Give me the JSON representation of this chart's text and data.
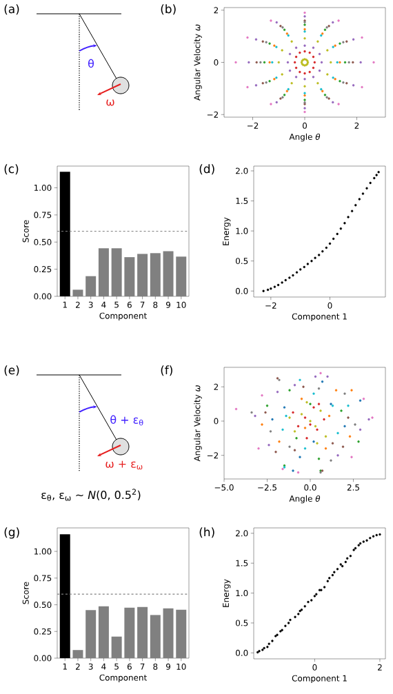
{
  "chart_data": [
    {
      "type": "other",
      "title": "(a)",
      "annotations": [
        "θ",
        "ω"
      ]
    },
    {
      "type": "scatter",
      "title": "(b)",
      "xlabel": "Angle *θ*",
      "ylabel": "Angular Velocity *ω*",
      "marker": "circle",
      "xlim": [
        -3.1,
        3.1
      ],
      "ylim": [
        -2.1,
        2.1
      ],
      "xticks": [
        {
          "value": -2,
          "label": "−2"
        },
        0,
        2
      ],
      "yticks": [
        {
          "value": -2,
          "label": "−2"
        },
        0,
        2
      ],
      "series": [
        {
          "color": "#e377c2",
          "x": [
            2.65,
            2.2,
            1.3,
            0,
            -1.3,
            -2.2,
            -2.65,
            -2.2,
            -1.3,
            0,
            1.3,
            2.2
          ],
          "values": [
            0,
            0.95,
            1.6,
            1.9,
            1.6,
            0.95,
            0,
            -0.95,
            -1.6,
            -1.9,
            -1.6,
            -0.95
          ]
        },
        {
          "color": "#9467bd",
          "x": [
            2.15,
            1.87,
            1.08,
            0,
            -1.08,
            -1.87,
            -2.15,
            -1.87,
            -1.08,
            0,
            1.08,
            1.87
          ],
          "values": [
            0,
            0.88,
            1.53,
            1.76,
            1.53,
            0.88,
            0,
            -0.88,
            -1.53,
            -1.76,
            -1.53,
            -0.88
          ]
        },
        {
          "color": "#8c564b",
          "x": [
            1.85,
            1.61,
            0.93,
            0,
            -0.93,
            -1.61,
            -1.85,
            -1.61,
            -0.93,
            0,
            0.93,
            1.61
          ],
          "values": [
            0,
            0.8,
            1.39,
            1.6,
            1.39,
            0.8,
            0,
            -0.8,
            -1.39,
            -1.6,
            -1.39,
            -0.8
          ]
        },
        {
          "color": "#7f7f7f",
          "x": [
            1.7,
            1.48,
            0.85,
            0,
            -0.85,
            -1.48,
            -1.7,
            -1.48,
            -0.85,
            0,
            0.85,
            1.48
          ],
          "values": [
            0,
            0.77,
            1.34,
            1.54,
            1.34,
            0.77,
            0,
            -0.77,
            -1.34,
            -1.54,
            -1.34,
            -0.77
          ]
        },
        {
          "color": "#2ca02c",
          "x": [
            1.55,
            1.35,
            0.78,
            0,
            -0.78,
            -1.35,
            -1.55,
            -1.35,
            -0.78,
            0,
            0.78,
            1.35
          ],
          "values": [
            0,
            0.72,
            1.25,
            1.44,
            1.25,
            0.72,
            0,
            -0.72,
            -1.25,
            -1.44,
            -1.25,
            -0.72
          ]
        },
        {
          "color": "#ff7f0e",
          "x": [
            1.35,
            1.17,
            0.68,
            0,
            -0.68,
            -1.17,
            -1.35,
            -1.17,
            -0.68,
            0,
            0.68,
            1.17
          ],
          "values": [
            0,
            0.64,
            1.1,
            1.27,
            1.1,
            0.64,
            0,
            -0.64,
            -1.1,
            -1.27,
            -1.1,
            -0.64
          ]
        },
        {
          "color": "#17becf",
          "x": [
            1.25,
            1.09,
            0.63,
            0,
            -0.63,
            -1.09,
            -1.25,
            -1.09,
            -0.63,
            0,
            0.63,
            1.09
          ],
          "values": [
            0,
            0.59,
            1.03,
            1.18,
            1.03,
            0.59,
            0,
            -0.59,
            -1.03,
            -1.18,
            -1.03,
            -0.59
          ]
        },
        {
          "color": "#bcbd22",
          "x": [
            1,
            0.87,
            0.5,
            0,
            -0.5,
            -0.87,
            -1,
            -0.87,
            -0.5,
            0,
            0.5,
            0.87
          ],
          "values": [
            0,
            0.46,
            0.8,
            0.92,
            0.8,
            0.46,
            0,
            -0.46,
            -0.8,
            -0.92,
            -0.8,
            -0.46
          ]
        },
        {
          "color": "#9467bd",
          "x": [
            0.65,
            0.57,
            0.33,
            0,
            -0.33,
            -0.57,
            -0.65,
            -0.57,
            -0.33,
            0,
            0.33,
            0.57
          ],
          "values": [
            0,
            0.32,
            0.56,
            0.64,
            0.56,
            0.32,
            0,
            -0.32,
            -0.56,
            -0.64,
            -0.56,
            -0.32
          ]
        },
        {
          "color": "#d62728",
          "x": [
            0.38,
            0.33,
            0.19,
            0,
            -0.19,
            -0.33,
            -0.38,
            -0.33,
            -0.19,
            0,
            0.19,
            0.33
          ],
          "values": [
            0,
            0.21,
            0.37,
            0.42,
            0.37,
            0.21,
            0,
            -0.21,
            -0.37,
            -0.42,
            -0.37,
            -0.21
          ]
        },
        {
          "color": "#bcbd22",
          "x": [
            0.12,
            0.1,
            0.06,
            0,
            -0.06,
            -0.1,
            -0.12,
            -0.1,
            -0.06,
            0,
            0.06,
            0.1
          ],
          "values": [
            0,
            0.06,
            0.1,
            0.12,
            0.1,
            0.06,
            0,
            -0.06,
            -0.1,
            -0.12,
            -0.1,
            -0.06
          ]
        }
      ]
    },
    {
      "type": "bar",
      "title": "(c)",
      "xlabel": "Component",
      "ylabel": "Score",
      "categories": [
        "1",
        "2",
        "3",
        "4",
        "5",
        "6",
        "7",
        "8",
        "9",
        "10"
      ],
      "values": [
        1.148,
        0.061,
        0.186,
        0.443,
        0.443,
        0.361,
        0.391,
        0.398,
        0.416,
        0.366
      ],
      "colors": [
        "#000000",
        "#808080",
        "#808080",
        "#808080",
        "#808080",
        "#808080",
        "#808080",
        "#808080",
        "#808080",
        "#808080"
      ],
      "ylim": [
        0,
        1.2
      ],
      "yticks": [
        {
          "value": 0,
          "label": "0.00"
        },
        {
          "value": 0.25,
          "label": "0.25"
        },
        {
          "value": 0.5,
          "label": "0.50"
        },
        {
          "value": 0.75,
          "label": "0.75"
        },
        {
          "value": 1,
          "label": "1.00"
        }
      ],
      "ref_lines": [
        {
          "axis": "y",
          "value": 0.6,
          "color": "#808080",
          "line_style": "dashed"
        }
      ]
    },
    {
      "type": "scatter",
      "title": "(d)",
      "xlabel": "Component 1",
      "ylabel": "Energy",
      "marker": "circle",
      "color": "#000000",
      "xlim": [
        -2.58,
        1.88
      ],
      "ylim": [
        -0.1,
        2.08
      ],
      "xticks": [
        {
          "value": -2,
          "label": "−2"
        },
        0
      ],
      "yticks": [
        {
          "value": 0,
          "label": "0.0"
        },
        {
          "value": 0.5,
          "label": "0.5"
        },
        {
          "value": 1,
          "label": "1.0"
        },
        {
          "value": 1.5,
          "label": "1.5"
        },
        {
          "value": 2,
          "label": "2.0"
        }
      ],
      "x": [
        -2.25,
        -2.1,
        -2,
        -1.87,
        -1.75,
        -1.62,
        -1.5,
        -1.37,
        -1.25,
        -1.12,
        -1,
        -0.87,
        -0.75,
        -0.62,
        -0.5,
        -0.37,
        -0.25,
        -0.12,
        0,
        0.12,
        0.25,
        0.37,
        0.5,
        0.62,
        0.75,
        0.87,
        1,
        1.12,
        1.25,
        1.37,
        1.5,
        1.58,
        1.65
      ],
      "values": [
        0,
        0.02,
        0.04,
        0.07,
        0.1,
        0.14,
        0.18,
        0.22,
        0.26,
        0.31,
        0.36,
        0.4,
        0.45,
        0.5,
        0.55,
        0.6,
        0.66,
        0.72,
        0.79,
        0.87,
        0.95,
        1.04,
        1.13,
        1.23,
        1.33,
        1.43,
        1.53,
        1.62,
        1.71,
        1.8,
        1.88,
        1.93,
        1.98
      ]
    },
    {
      "type": "other",
      "title": "(e)",
      "annotations": [
        "θ + ε$_{θ}$",
        "ω + ε$_{ω}$",
        "ε$_{θ}$, ε$_{ω}$ ~ *N*(0, 0.5$^{2}$)"
      ]
    },
    {
      "type": "scatter",
      "title": "(f)",
      "xlabel": "Angle *θ*",
      "ylabel": "Angular Velocity *ω*",
      "marker": "circle",
      "xlim": [
        -5,
        4.36
      ],
      "ylim": [
        -3.38,
        3.14
      ],
      "xticks": [
        {
          "value": -5,
          "label": "−5.0"
        },
        {
          "value": -2.5,
          "label": "−2.5"
        },
        {
          "value": 0,
          "label": "0.0"
        },
        {
          "value": 2.5,
          "label": "2.5"
        }
      ],
      "yticks": [
        {
          "value": -2,
          "label": "−2"
        },
        0,
        2
      ],
      "series": [
        {
          "color": "#1f77b4",
          "x": [
            -1.5,
            0.2,
            1.2,
            -0.6,
            2.0,
            -2.2,
            0.7,
            -1.0,
            2.9
          ],
          "values": [
            0.8,
            -1.2,
            1.0,
            -2.1,
            -0.3,
            0.1,
            2.3,
            -2.9,
            1.2
          ]
        },
        {
          "color": "#ff7f0e",
          "x": [
            -2.8,
            1.5,
            -0.5,
            0.9,
            2.3,
            -1.8,
            2.4,
            -0.3,
            1.1
          ],
          "values": [
            -0.2,
            1.8,
            1.3,
            -1.6,
            -0.9,
            -1.2,
            1.8,
            -0.4,
            0.3
          ]
        },
        {
          "color": "#2ca02c",
          "x": [
            -2.5,
            0.5,
            -1.2,
            1.8,
            -0.8,
            0.0,
            2.8,
            -1.5,
            0.6
          ],
          "values": [
            0.9,
            -2.2,
            1.8,
            0.6,
            -1.0,
            1.0,
            -1.2,
            -2.6,
            -2.9
          ]
        },
        {
          "color": "#9467bd",
          "x": [
            -3.2,
            -1.9,
            0.3,
            2.9,
            1.6,
            -0.9,
            -2.4,
            1.0,
            3.4
          ],
          "values": [
            0.3,
            1.7,
            2.6,
            -0.5,
            -2.0,
            2.1,
            -1.4,
            2.6,
            0.1
          ]
        },
        {
          "color": "#8c564b",
          "x": [
            -2.0,
            -1.9,
            1.3,
            -0.9,
            2.2,
            -0.4,
            0.7,
            -2.6,
            1.9
          ],
          "values": [
            -1.8,
            2.5,
            -1.3,
            -1.7,
            0.2,
            2.0,
            -2.9,
            0.5,
            -1.5
          ]
        },
        {
          "color": "#e377c2",
          "x": [
            -4.3,
            3.6,
            -3.0,
            0.6,
            -0.7,
            2.4,
            -2.8,
            3.1,
            -1.6
          ],
          "values": [
            0.7,
            0.2,
            -1.6,
            2.8,
            -3.0,
            -2.1,
            1.5,
            1.3,
            -2.8
          ]
        },
        {
          "color": "#7f7f7f",
          "x": [
            -3.4,
            -1.8,
            0.6,
            2.0,
            -2.3,
            1.2,
            0.5,
            -1.2,
            2.6
          ],
          "values": [
            0.5,
            2.4,
            -3.0,
            1.6,
            -0.6,
            -2.3,
            1.9,
            -1.5,
            -0.2
          ]
        },
        {
          "color": "#17becf",
          "x": [
            -1.4,
            1.3,
            0.2,
            -0.3,
            1.6,
            -1.6,
            -0.6,
            -1.5,
            2.2
          ],
          "values": [
            0.3,
            0.9,
            1.6,
            -1.6,
            -0.7,
            -0.5,
            2.4,
            -2.7,
            0.9
          ]
        },
        {
          "color": "#d62728",
          "x": [
            -0.3,
            0.4,
            -0.7,
            0.2,
            0.8,
            -0.2,
            0.5,
            -1.0,
            0.0
          ],
          "values": [
            0.2,
            -0.5,
            -0.3,
            0.8,
            0.1,
            -1.0,
            1.0,
            0.5,
            -0.2
          ]
        },
        {
          "color": "#bcbd22",
          "x": [
            -0.5,
            0.3,
            -0.9,
            0.6,
            0.0,
            -0.2,
            0.9,
            -1.2,
            0.4
          ],
          "values": [
            0.4,
            -0.3,
            -0.6,
            0.6,
            0.0,
            1.1,
            -0.9,
            0.2,
            -1.3
          ]
        }
      ]
    },
    {
      "type": "bar",
      "title": "(g)",
      "xlabel": "Component",
      "ylabel": "Score",
      "categories": [
        "1",
        "2",
        "3",
        "4",
        "5",
        "6",
        "7",
        "8",
        "9",
        "10"
      ],
      "values": [
        1.16,
        0.076,
        0.45,
        0.486,
        0.202,
        0.472,
        0.479,
        0.404,
        0.466,
        0.454
      ],
      "colors": [
        "#000000",
        "#808080",
        "#808080",
        "#808080",
        "#808080",
        "#808080",
        "#808080",
        "#808080",
        "#808080",
        "#808080"
      ],
      "ylim": [
        0,
        1.22
      ],
      "yticks": [
        {
          "value": 0,
          "label": "0.00"
        },
        {
          "value": 0.25,
          "label": "0.25"
        },
        {
          "value": 0.5,
          "label": "0.50"
        },
        {
          "value": 0.75,
          "label": "0.75"
        },
        {
          "value": 1,
          "label": "1.00"
        }
      ],
      "ref_lines": [
        {
          "axis": "y",
          "value": 0.6,
          "color": "#808080",
          "line_style": "dashed"
        }
      ]
    },
    {
      "type": "scatter",
      "title": "(h)",
      "xlabel": "Component 1",
      "ylabel": "Energy",
      "marker": "circle",
      "color": "#000000",
      "xlim": [
        -1.87,
        2.17
      ],
      "ylim": [
        -0.1,
        2.09
      ],
      "xticks": [
        0,
        2
      ],
      "yticks": [
        {
          "value": 0,
          "label": "0.0"
        },
        {
          "value": 0.5,
          "label": "0.5"
        },
        {
          "value": 1,
          "label": "1.0"
        },
        {
          "value": 1.5,
          "label": "1.5"
        },
        {
          "value": 2,
          "label": "2.0"
        }
      ],
      "x": [
        -1.75,
        -1.7,
        -1.6,
        -1.55,
        -1.45,
        -1.4,
        -1.3,
        -1.2,
        -1.15,
        -1.05,
        -1,
        -0.9,
        -0.8,
        -0.75,
        -0.6,
        -0.5,
        -0.45,
        -0.4,
        -0.3,
        -0.2,
        -0.1,
        0,
        0.05,
        0.15,
        0.2,
        0.3,
        0.4,
        0.45,
        0.55,
        0.6,
        0.7,
        0.8,
        0.85,
        0.95,
        1.0,
        1.1,
        1.2,
        1.25,
        1.35,
        1.4,
        1.5,
        1.6,
        1.7,
        1.8,
        1.9,
        2.0
      ],
      "values": [
        0.01,
        0.03,
        0.05,
        0.08,
        0.1,
        0.15,
        0.2,
        0.28,
        0.3,
        0.36,
        0.38,
        0.45,
        0.5,
        0.55,
        0.6,
        0.65,
        0.7,
        0.72,
        0.78,
        0.85,
        0.88,
        0.95,
        0.98,
        1.05,
        1.05,
        1.1,
        1.2,
        1.25,
        1.3,
        1.35,
        1.4,
        1.48,
        1.45,
        1.52,
        1.58,
        1.62,
        1.72,
        1.75,
        1.8,
        1.83,
        1.86,
        1.88,
        1.92,
        1.95,
        1.97,
        1.98
      ]
    }
  ]
}
